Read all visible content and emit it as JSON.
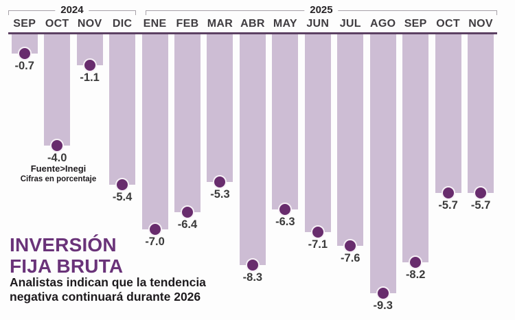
{
  "chart_data": {
    "type": "bar",
    "orientation": "vertical-negative",
    "title": "INVERSIÓN FIJA BRUTA",
    "year_groups": [
      {
        "label": "2024",
        "span": 4
      },
      {
        "label": "2025",
        "span": 11
      }
    ],
    "categories": [
      "SEP",
      "OCT",
      "NOV",
      "DIC",
      "ENE",
      "FEB",
      "MAR",
      "ABR",
      "MAY",
      "JUN",
      "JUL",
      "AGO",
      "SEP",
      "OCT",
      "NOV"
    ],
    "values": [
      -0.7,
      -4.0,
      -1.1,
      -5.4,
      -7.0,
      -6.4,
      -5.3,
      -8.3,
      -6.3,
      -7.1,
      -7.6,
      -9.3,
      -8.2,
      -5.7,
      -5.7
    ],
    "value_labels": [
      "-0.7",
      "-4.0",
      "-1.1",
      "-5.4",
      "-7.0",
      "-6.4",
      "-5.3",
      "-8.3",
      "-6.3",
      "-7.1",
      "-7.6",
      "-9.3",
      "-8.2",
      "-5.7",
      "-5.7"
    ],
    "ylim": [
      -10,
      0
    ],
    "grid": false,
    "legend": false
  },
  "source": {
    "line1": "Fuente>Inegi",
    "line2": "Cifras en porcentaje"
  },
  "title": {
    "line1": "INVERSIÓN",
    "line2": "FIJA BRUTA"
  },
  "subtitle": {
    "line1": "Analistas indican que la tendencia",
    "line2": "negativa continuará durante 2026"
  },
  "colors": {
    "bar": "#cdbdd4",
    "dot": "#682c6d",
    "dot_ring": "#f6f0f6",
    "baseline": "#5c4163",
    "title": "#6a3379",
    "text": "#3a3a3a",
    "bracket": "#a5a0a7"
  }
}
